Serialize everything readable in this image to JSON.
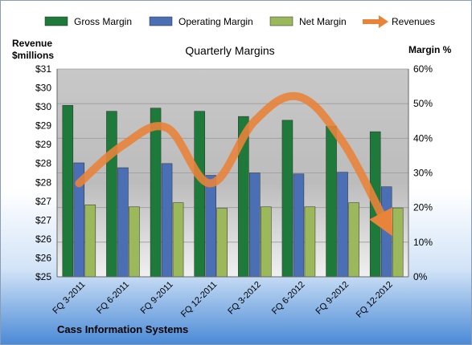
{
  "chart_data": {
    "type": "bar",
    "title": "Quarterly Margins",
    "footer": "Cass Information Systems",
    "categories": [
      "FQ 3-2011",
      "FQ 6-2011",
      "FQ 9-2011",
      "FQ 12-2011",
      "FQ 3-2012",
      "FQ 6-2012",
      "FQ 9-2012",
      "FQ 12-2012"
    ],
    "series": [
      {
        "name": "Gross Margin",
        "color": "#1e7a3a",
        "values": [
          49.5,
          47.8,
          48.7,
          47.8,
          46.3,
          45.2,
          43.5,
          41.9
        ]
      },
      {
        "name": "Operating Margin",
        "color": "#4a6fb5",
        "values": [
          32.9,
          31.5,
          32.7,
          29.3,
          30.0,
          29.7,
          30.2,
          26.0
        ]
      },
      {
        "name": "Net Margin",
        "color": "#9bb85a",
        "values": [
          20.8,
          20.2,
          21.4,
          19.8,
          20.2,
          20.2,
          21.4,
          19.9
        ]
      }
    ],
    "line": {
      "name": "Revenues",
      "color": "#e8833a",
      "values": [
        27.7,
        28.8,
        29.3,
        27.7,
        29.5,
        30.2,
        28.9,
        26.5
      ]
    },
    "left_axis": {
      "label_line1": "Revenue",
      "label_line2": "$millions",
      "ticks": [
        "$31",
        "$30",
        "$30",
        "$29",
        "$29",
        "$28",
        "$28",
        "$27",
        "$27",
        "$26",
        "$26",
        "$25"
      ],
      "min": 25,
      "max": 31
    },
    "right_axis": {
      "label": "Margin %",
      "ticks": [
        "60%",
        "50%",
        "40%",
        "30%",
        "20%",
        "10%",
        "0%"
      ],
      "min": 0,
      "max": 60
    },
    "legend_position": "top",
    "grid": true
  }
}
